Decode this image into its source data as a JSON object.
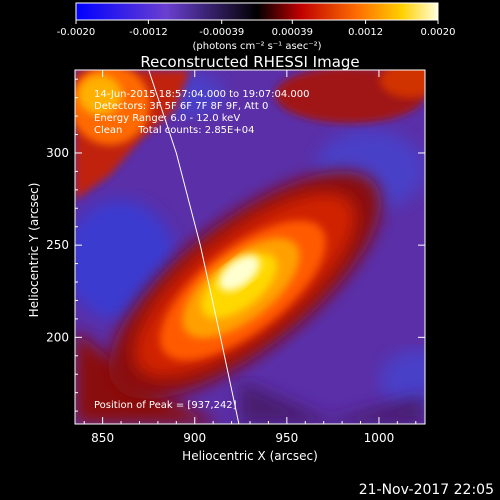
{
  "colorbar": {
    "ticks": [
      {
        "value": -0.002,
        "label": "-0.0020"
      },
      {
        "value": -0.0012,
        "label": "-0.0012"
      },
      {
        "value": -0.00039,
        "label": "-0.00039"
      },
      {
        "value": 0.00039,
        "label": "0.00039"
      },
      {
        "value": 0.0012,
        "label": "0.0012"
      },
      {
        "value": 0.002,
        "label": "0.0020"
      }
    ],
    "range": [
      -0.002,
      0.002
    ],
    "unit_label": "(photons cm⁻² s⁻¹ asec⁻²)"
  },
  "chart_data": {
    "type": "heatmap",
    "title": "Reconstructed RHESSI Image",
    "xlabel": "Heliocentric X (arcsec)",
    "ylabel": "Heliocentric Y (arcsec)",
    "xlim": [
      835,
      1025
    ],
    "ylim": [
      153,
      345
    ],
    "x_ticks": [
      850,
      900,
      950,
      1000
    ],
    "y_ticks": [
      200,
      250,
      300
    ],
    "info_lines": [
      "14-Jun-2015 18:57:04.000 to 19:07:04.000",
      "Detectors: 3F 5F 6F 7F 8F 9F, Att 0",
      "Energy Range: 6.0 - 12.0 keV",
      "Clean     Total counts: 2.85E+04"
    ],
    "peak_label": "Position of Peak = [937,242]",
    "peak": [
      937,
      242
    ],
    "limb_points": [
      [
        875,
        345
      ],
      [
        890,
        300
      ],
      [
        903,
        250
      ],
      [
        914,
        200
      ],
      [
        924,
        153
      ]
    ]
  },
  "timestamp": "21-Nov-2017 22:05"
}
